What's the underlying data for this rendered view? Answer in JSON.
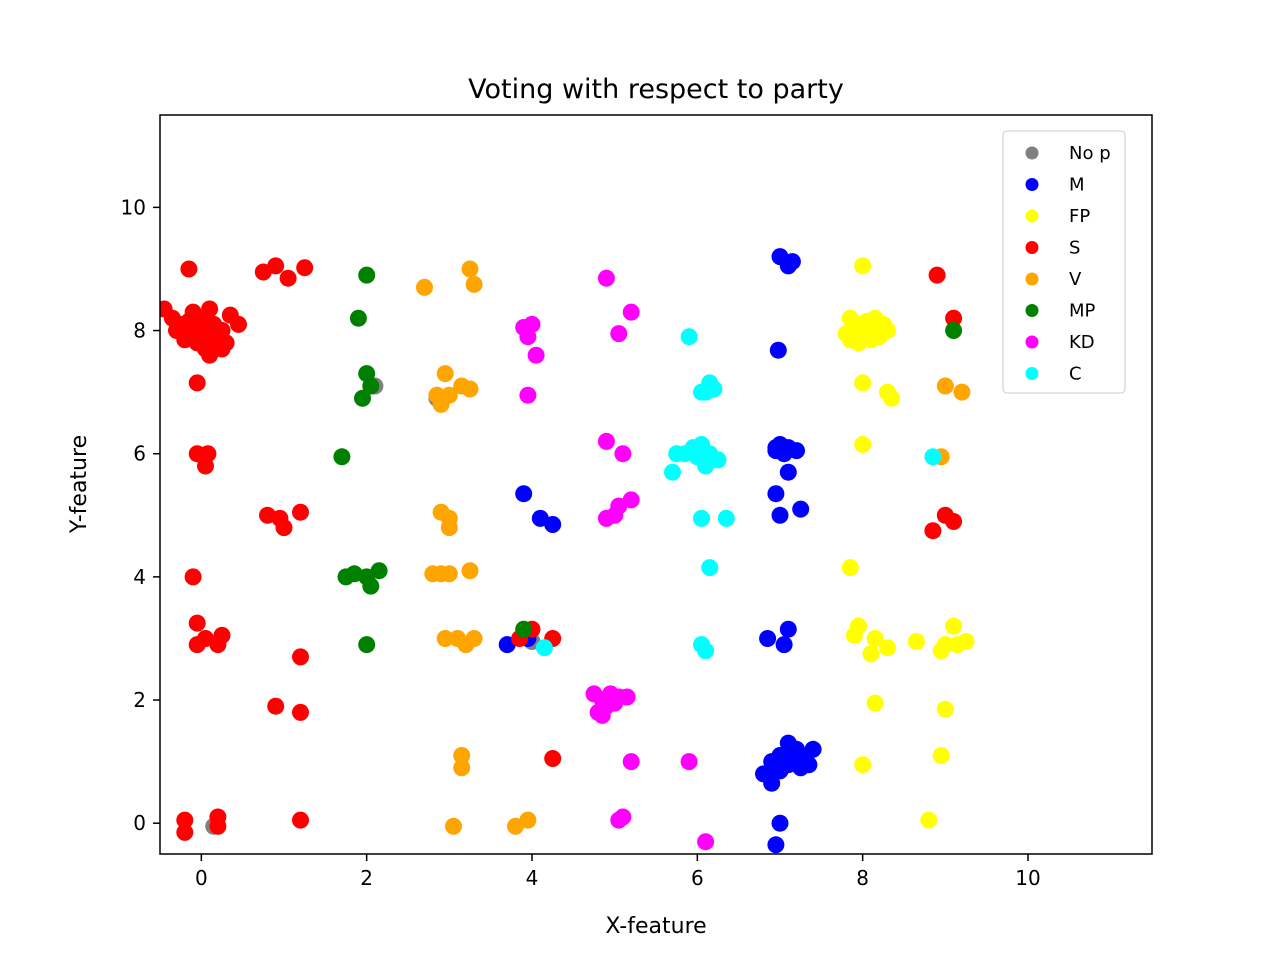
{
  "chart_data": {
    "type": "scatter",
    "title": "Voting with respect to party",
    "xlabel": "X-feature",
    "ylabel": "Y-feature",
    "xlim": [
      -0.5,
      11.5
    ],
    "ylim": [
      -0.5,
      11.5
    ],
    "xticks": [
      0,
      2,
      4,
      6,
      8,
      10
    ],
    "yticks": [
      0,
      2,
      4,
      6,
      8,
      10
    ],
    "grid": false,
    "legend_position": "top-right",
    "series": [
      {
        "name": "No p",
        "color": "#808080",
        "points": [
          [
            2.85,
            6.9
          ],
          [
            2.1,
            7.1
          ],
          [
            4.0,
            2.95
          ],
          [
            0.15,
            -0.05
          ]
        ]
      },
      {
        "name": "M",
        "color": "#0000ff",
        "points": [
          [
            7.0,
            9.2
          ],
          [
            7.1,
            9.05
          ],
          [
            7.15,
            9.12
          ],
          [
            6.98,
            7.68
          ],
          [
            6.95,
            6.1
          ],
          [
            7.0,
            6.15
          ],
          [
            7.05,
            6.0
          ],
          [
            7.1,
            6.1
          ],
          [
            7.2,
            6.05
          ],
          [
            6.95,
            6.05
          ],
          [
            7.1,
            5.7
          ],
          [
            6.95,
            5.35
          ],
          [
            7.25,
            5.1
          ],
          [
            7.0,
            5.0
          ],
          [
            3.9,
            5.35
          ],
          [
            4.1,
            4.95
          ],
          [
            4.25,
            4.85
          ],
          [
            6.85,
            3.0
          ],
          [
            7.1,
            3.15
          ],
          [
            7.05,
            2.9
          ],
          [
            3.7,
            2.9
          ],
          [
            3.95,
            3.0
          ],
          [
            6.8,
            0.8
          ],
          [
            6.9,
            1.0
          ],
          [
            7.0,
            1.1
          ],
          [
            7.1,
            1.3
          ],
          [
            7.2,
            1.2
          ],
          [
            7.3,
            1.05
          ],
          [
            7.4,
            1.2
          ],
          [
            7.0,
            0.85
          ],
          [
            7.1,
            0.95
          ],
          [
            7.25,
            0.9
          ],
          [
            7.35,
            0.95
          ],
          [
            6.95,
            0.9
          ],
          [
            6.9,
            0.65
          ],
          [
            7.05,
            1.05
          ],
          [
            7.15,
            1.1
          ],
          [
            7.0,
            0.0
          ],
          [
            6.95,
            -0.35
          ]
        ]
      },
      {
        "name": "FP",
        "color": "#ffff00",
        "points": [
          [
            8.0,
            9.05
          ],
          [
            7.85,
            8.2
          ],
          [
            7.95,
            8.1
          ],
          [
            8.05,
            8.15
          ],
          [
            8.15,
            8.2
          ],
          [
            8.25,
            8.1
          ],
          [
            8.3,
            8.0
          ],
          [
            8.2,
            7.9
          ],
          [
            8.1,
            7.85
          ],
          [
            7.95,
            7.8
          ],
          [
            7.85,
            7.85
          ],
          [
            7.8,
            7.95
          ],
          [
            8.0,
            8.0
          ],
          [
            8.1,
            8.05
          ],
          [
            8.2,
            7.95
          ],
          [
            7.9,
            8.05
          ],
          [
            8.0,
            7.9
          ],
          [
            8.0,
            7.15
          ],
          [
            8.3,
            7.0
          ],
          [
            8.35,
            6.9
          ],
          [
            8.0,
            6.15
          ],
          [
            7.85,
            4.15
          ],
          [
            7.95,
            3.2
          ],
          [
            7.9,
            3.05
          ],
          [
            8.15,
            3.0
          ],
          [
            8.1,
            2.75
          ],
          [
            8.3,
            2.85
          ],
          [
            8.65,
            2.95
          ],
          [
            8.95,
            2.8
          ],
          [
            9.0,
            2.9
          ],
          [
            9.1,
            3.2
          ],
          [
            9.15,
            2.9
          ],
          [
            9.25,
            2.95
          ],
          [
            8.15,
            1.95
          ],
          [
            9.0,
            1.85
          ],
          [
            8.0,
            0.95
          ],
          [
            8.95,
            1.1
          ],
          [
            8.8,
            0.05
          ]
        ]
      },
      {
        "name": "S",
        "color": "#ff0000",
        "points": [
          [
            -0.45,
            8.35
          ],
          [
            -0.35,
            8.2
          ],
          [
            -0.3,
            8.0
          ],
          [
            -0.25,
            8.1
          ],
          [
            -0.2,
            7.95
          ],
          [
            -0.15,
            8.15
          ],
          [
            -0.1,
            8.3
          ],
          [
            -0.05,
            8.05
          ],
          [
            0.0,
            7.9
          ],
          [
            0.05,
            8.2
          ],
          [
            0.1,
            8.0
          ],
          [
            0.15,
            8.1
          ],
          [
            0.2,
            7.85
          ],
          [
            0.25,
            8.0
          ],
          [
            0.1,
            8.35
          ],
          [
            -0.05,
            7.8
          ],
          [
            0.05,
            7.7
          ],
          [
            0.3,
            7.8
          ],
          [
            0.35,
            8.25
          ],
          [
            0.45,
            8.1
          ],
          [
            0.1,
            7.6
          ],
          [
            0.25,
            7.7
          ],
          [
            -0.1,
            8.15
          ],
          [
            -0.2,
            7.85
          ],
          [
            0.15,
            7.8
          ],
          [
            -0.15,
            9.0
          ],
          [
            -0.05,
            7.15
          ],
          [
            0.75,
            8.95
          ],
          [
            0.9,
            9.05
          ],
          [
            1.05,
            8.85
          ],
          [
            1.25,
            9.02
          ],
          [
            8.9,
            8.9
          ],
          [
            9.1,
            8.2
          ],
          [
            -0.05,
            6.0
          ],
          [
            0.05,
            5.8
          ],
          [
            0.08,
            6.0
          ],
          [
            0.8,
            5.0
          ],
          [
            0.95,
            4.95
          ],
          [
            1.0,
            4.8
          ],
          [
            1.2,
            5.05
          ],
          [
            9.0,
            5.0
          ],
          [
            9.1,
            4.9
          ],
          [
            8.85,
            4.75
          ],
          [
            -0.1,
            4.0
          ],
          [
            -0.05,
            3.25
          ],
          [
            0.05,
            3.0
          ],
          [
            0.2,
            2.9
          ],
          [
            0.25,
            3.05
          ],
          [
            -0.05,
            2.9
          ],
          [
            1.2,
            2.7
          ],
          [
            3.85,
            3.0
          ],
          [
            4.0,
            3.15
          ],
          [
            4.25,
            3.0
          ],
          [
            0.9,
            1.9
          ],
          [
            1.2,
            1.8
          ],
          [
            4.25,
            1.05
          ],
          [
            -0.2,
            0.05
          ],
          [
            -0.2,
            -0.15
          ],
          [
            0.2,
            0.1
          ],
          [
            0.2,
            -0.05
          ],
          [
            1.2,
            0.05
          ]
        ]
      },
      {
        "name": "V",
        "color": "#ffa500",
        "points": [
          [
            2.7,
            8.7
          ],
          [
            3.25,
            9.0
          ],
          [
            3.3,
            8.75
          ],
          [
            2.95,
            7.3
          ],
          [
            2.85,
            6.95
          ],
          [
            2.9,
            6.8
          ],
          [
            3.0,
            6.95
          ],
          [
            3.15,
            7.1
          ],
          [
            3.25,
            7.05
          ],
          [
            9.0,
            7.1
          ],
          [
            9.2,
            7.0
          ],
          [
            2.9,
            5.05
          ],
          [
            3.0,
            4.95
          ],
          [
            3.0,
            4.8
          ],
          [
            8.95,
            5.95
          ],
          [
            2.8,
            4.05
          ],
          [
            2.9,
            4.05
          ],
          [
            3.0,
            4.05
          ],
          [
            3.25,
            4.1
          ],
          [
            2.95,
            3.0
          ],
          [
            3.1,
            3.0
          ],
          [
            3.2,
            2.9
          ],
          [
            3.3,
            3.0
          ],
          [
            3.15,
            1.1
          ],
          [
            3.15,
            0.9
          ],
          [
            3.05,
            -0.05
          ],
          [
            3.8,
            -0.05
          ],
          [
            3.95,
            0.05
          ]
        ]
      },
      {
        "name": "MP",
        "color": "#008000",
        "points": [
          [
            2.0,
            8.9
          ],
          [
            1.9,
            8.2
          ],
          [
            2.0,
            7.3
          ],
          [
            2.05,
            7.1
          ],
          [
            1.95,
            6.9
          ],
          [
            1.7,
            5.95
          ],
          [
            1.75,
            4.0
          ],
          [
            1.85,
            4.05
          ],
          [
            2.0,
            4.0
          ],
          [
            2.05,
            3.85
          ],
          [
            2.15,
            4.1
          ],
          [
            2.0,
            2.9
          ],
          [
            3.9,
            3.15
          ],
          [
            9.1,
            8.0
          ]
        ]
      },
      {
        "name": "KD",
        "color": "#ff00ff",
        "points": [
          [
            4.9,
            8.85
          ],
          [
            5.2,
            8.3
          ],
          [
            3.9,
            8.05
          ],
          [
            4.0,
            8.1
          ],
          [
            3.95,
            7.9
          ],
          [
            4.05,
            7.6
          ],
          [
            5.05,
            7.95
          ],
          [
            3.95,
            6.95
          ],
          [
            4.9,
            6.2
          ],
          [
            5.1,
            6.0
          ],
          [
            5.05,
            5.15
          ],
          [
            5.2,
            5.25
          ],
          [
            4.9,
            4.95
          ],
          [
            5.0,
            5.0
          ],
          [
            4.75,
            2.1
          ],
          [
            4.85,
            2.0
          ],
          [
            4.95,
            2.1
          ],
          [
            5.05,
            2.05
          ],
          [
            5.15,
            2.05
          ],
          [
            4.8,
            1.8
          ],
          [
            4.9,
            1.9
          ],
          [
            5.0,
            1.95
          ],
          [
            4.85,
            1.75
          ],
          [
            5.2,
            1.0
          ],
          [
            5.9,
            1.0
          ],
          [
            5.05,
            0.05
          ],
          [
            5.1,
            0.1
          ],
          [
            6.1,
            -0.3
          ]
        ]
      },
      {
        "name": "C",
        "color": "#00ffff",
        "points": [
          [
            5.9,
            7.9
          ],
          [
            6.05,
            7.0
          ],
          [
            6.15,
            7.15
          ],
          [
            6.2,
            7.05
          ],
          [
            6.1,
            7.0
          ],
          [
            5.75,
            6.0
          ],
          [
            5.95,
            6.1
          ],
          [
            6.05,
            6.15
          ],
          [
            6.15,
            6.0
          ],
          [
            6.25,
            5.9
          ],
          [
            6.1,
            5.8
          ],
          [
            6.0,
            5.95
          ],
          [
            5.85,
            6.0
          ],
          [
            5.7,
            5.7
          ],
          [
            6.05,
            4.95
          ],
          [
            6.35,
            4.95
          ],
          [
            6.15,
            4.15
          ],
          [
            6.05,
            2.9
          ],
          [
            6.1,
            2.8
          ],
          [
            4.15,
            2.85
          ],
          [
            8.85,
            5.95
          ]
        ]
      }
    ]
  }
}
